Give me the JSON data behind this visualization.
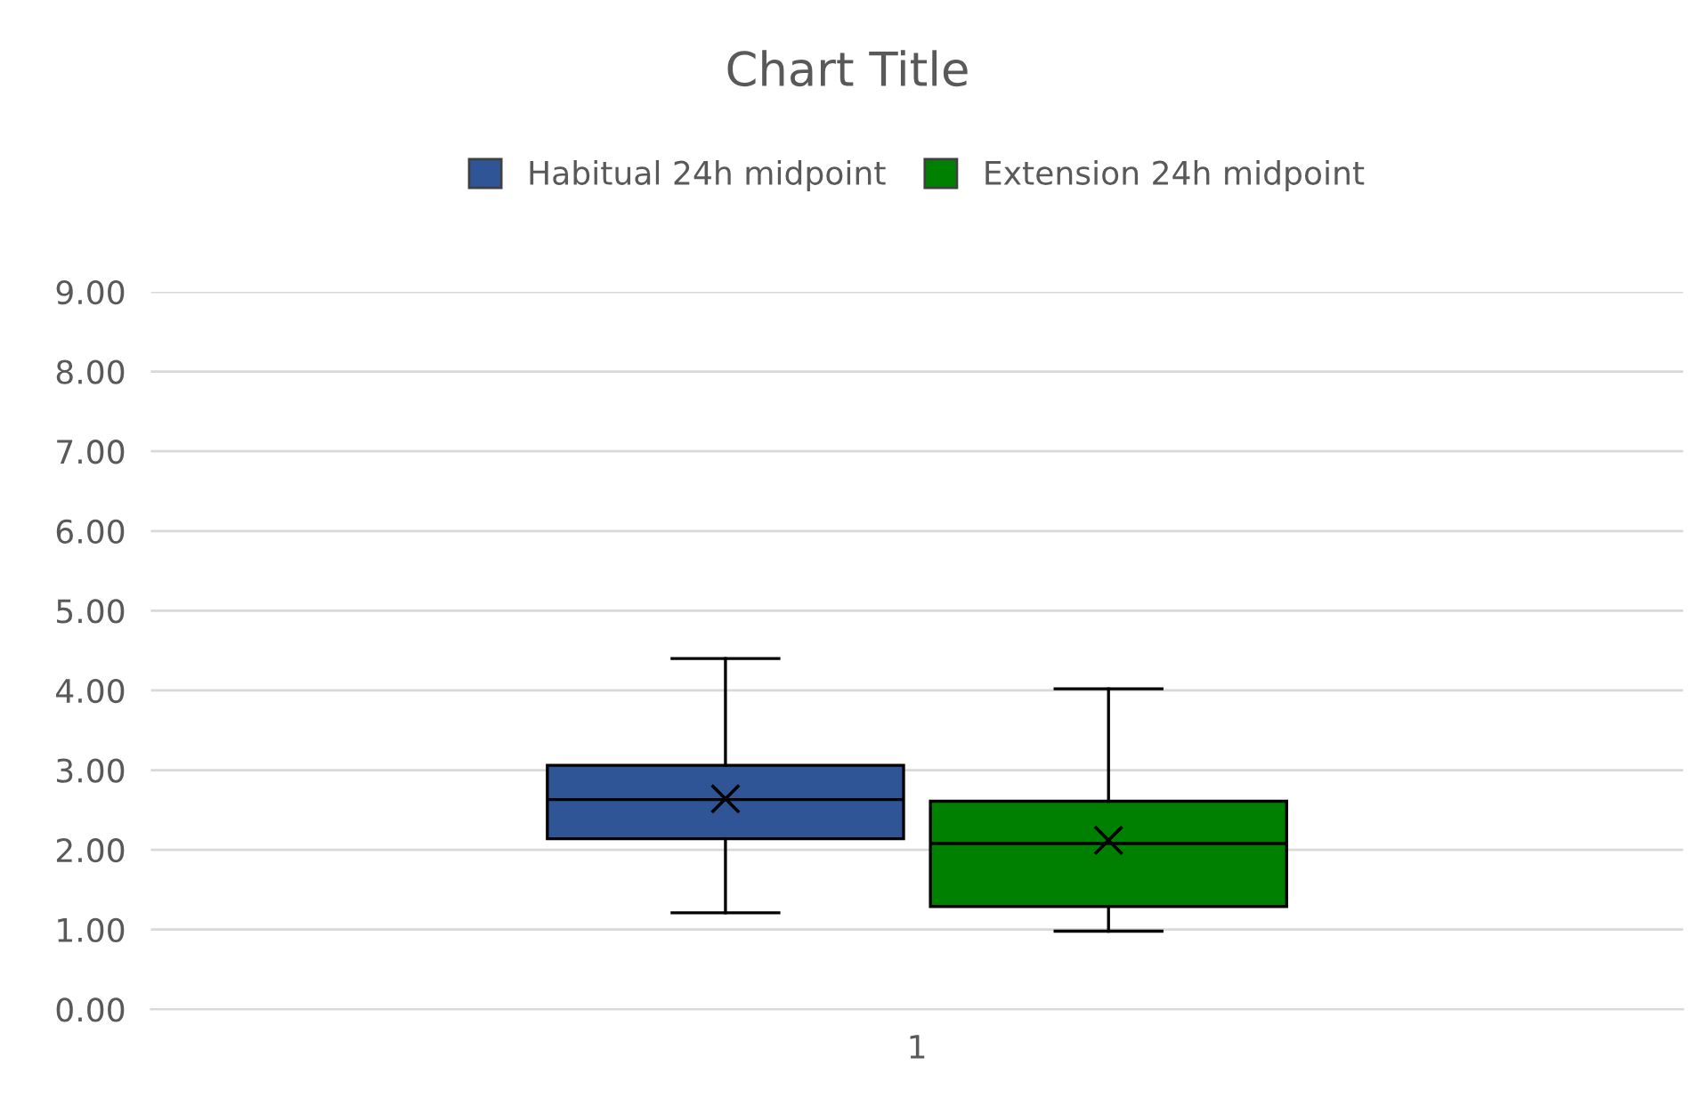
{
  "chart_data": {
    "type": "box",
    "title": "Chart Title",
    "categories": [
      "1"
    ],
    "series": [
      {
        "name": "Habitual 24h midpoint",
        "color": "#2f5597",
        "boxes": [
          {
            "low": 1.21,
            "q1": 2.14,
            "median": 2.63,
            "q3": 3.06,
            "high": 4.4,
            "mean": 2.64
          }
        ]
      },
      {
        "name": "Extension 24h midpoint",
        "color": "#008000",
        "boxes": [
          {
            "low": 0.98,
            "q1": 1.29,
            "median": 2.08,
            "q3": 2.61,
            "high": 4.02,
            "mean": 2.12
          }
        ]
      }
    ],
    "ylim": [
      0,
      9
    ],
    "yticks": [
      {
        "value": 0,
        "label": "0.00"
      },
      {
        "value": 1,
        "label": "1.00"
      },
      {
        "value": 2,
        "label": "2.00"
      },
      {
        "value": 3,
        "label": "3.00"
      },
      {
        "value": 4,
        "label": "4.00"
      },
      {
        "value": 5,
        "label": "5.00"
      },
      {
        "value": 6,
        "label": "6.00"
      },
      {
        "value": 7,
        "label": "7.00"
      },
      {
        "value": 8,
        "label": "8.00"
      },
      {
        "value": 9,
        "label": "9.00"
      }
    ],
    "grid": "y",
    "legend": "top",
    "marker": "cross"
  }
}
